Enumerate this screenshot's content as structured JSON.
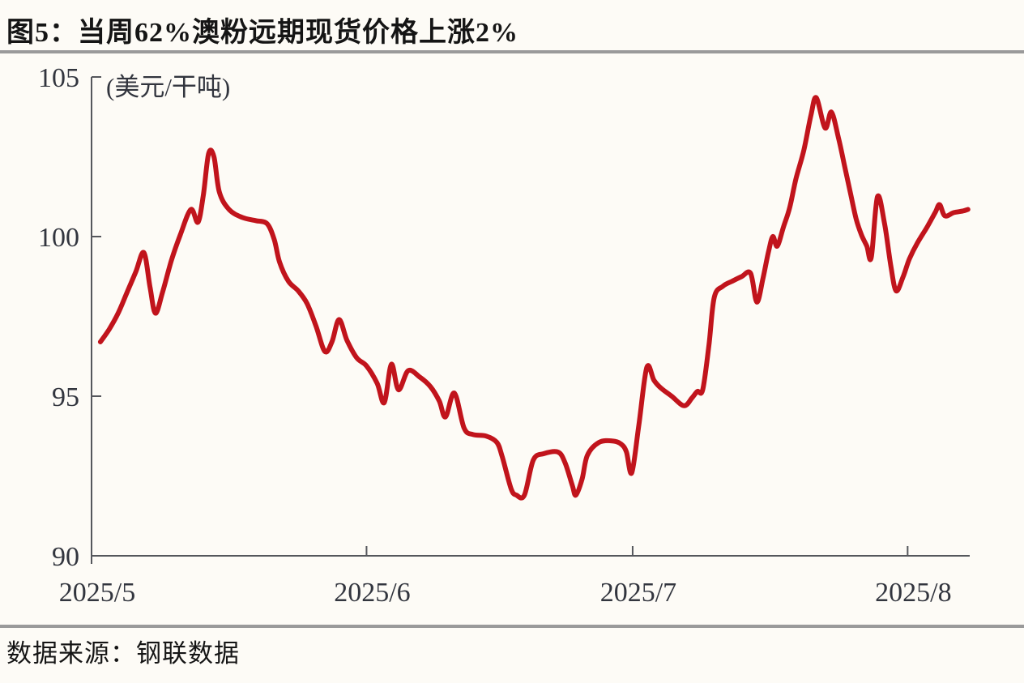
{
  "header": {
    "title": "图5：当周62%澳粉远期现货价格上涨2%"
  },
  "footer": {
    "source": "数据来源：钢联数据"
  },
  "colors": {
    "background": "#fdfbf6",
    "line": "#c1141c",
    "axis": "#55575c",
    "text": "#32353e",
    "title_text": "#151515",
    "divider": "#9a9a9a"
  },
  "chart_data": {
    "type": "line",
    "title": "62%澳粉远期现货价格",
    "unit_label": "(美元/干吨)",
    "ylabel": "美元/干吨",
    "ylim": [
      90,
      105
    ],
    "yticks": [
      105,
      100,
      95,
      90
    ],
    "x_unit": "days since 2025/5/1",
    "x_domain_days": [
      0,
      99
    ],
    "xticks": [
      {
        "label": "2025/5",
        "day": 0
      },
      {
        "label": "2025/6",
        "day": 31
      },
      {
        "label": "2025/7",
        "day": 61
      },
      {
        "label": "2025/8",
        "day": 92
      }
    ],
    "grid": false,
    "legend_position": "none",
    "series": [
      {
        "name": "62%澳粉远期现货价格",
        "color": "#c1141c",
        "points": [
          [
            1,
            96.7
          ],
          [
            2,
            97.1
          ],
          [
            3,
            97.6
          ],
          [
            4,
            98.25
          ],
          [
            5,
            98.9
          ],
          [
            5.9,
            99.5
          ],
          [
            6.6,
            98.4
          ],
          [
            7.2,
            97.6
          ],
          [
            8,
            98.25
          ],
          [
            9,
            99.25
          ],
          [
            10,
            100.05
          ],
          [
            11.2,
            100.85
          ],
          [
            12,
            100.45
          ],
          [
            12.6,
            101.3
          ],
          [
            13.2,
            102.6
          ],
          [
            13.8,
            102.5
          ],
          [
            14.4,
            101.4
          ],
          [
            15.5,
            100.85
          ],
          [
            17,
            100.6
          ],
          [
            18.5,
            100.5
          ],
          [
            19.8,
            100.4
          ],
          [
            20.6,
            99.9
          ],
          [
            21.2,
            99.2
          ],
          [
            22.2,
            98.6
          ],
          [
            23.3,
            98.3
          ],
          [
            24.3,
            97.9
          ],
          [
            25.3,
            97.2
          ],
          [
            26.3,
            96.4
          ],
          [
            27.1,
            96.7
          ],
          [
            27.9,
            97.4
          ],
          [
            28.8,
            96.75
          ],
          [
            29.9,
            96.2
          ],
          [
            31,
            95.95
          ],
          [
            32.2,
            95.4
          ],
          [
            33,
            94.8
          ],
          [
            33.8,
            96
          ],
          [
            34.6,
            95.2
          ],
          [
            35.7,
            95.8
          ],
          [
            37,
            95.6
          ],
          [
            38.2,
            95.3
          ],
          [
            39.2,
            94.85
          ],
          [
            39.9,
            94.35
          ],
          [
            40.9,
            95.1
          ],
          [
            42,
            94
          ],
          [
            43,
            93.8
          ],
          [
            44.5,
            93.75
          ],
          [
            45.7,
            93.55
          ],
          [
            46.3,
            93.1
          ],
          [
            47.3,
            92.1
          ],
          [
            47.9,
            91.9
          ],
          [
            48.8,
            91.9
          ],
          [
            49.8,
            93
          ],
          [
            51,
            93.2
          ],
          [
            52.6,
            93.25
          ],
          [
            53.4,
            92.9
          ],
          [
            54.2,
            92.2
          ],
          [
            54.6,
            91.9
          ],
          [
            55.3,
            92.4
          ],
          [
            55.9,
            93.15
          ],
          [
            57.2,
            93.55
          ],
          [
            58.7,
            93.6
          ],
          [
            59.7,
            93.5
          ],
          [
            60.3,
            93.25
          ],
          [
            60.9,
            92.6
          ],
          [
            61.7,
            94.1
          ],
          [
            62.6,
            95.9
          ],
          [
            63.4,
            95.5
          ],
          [
            64.2,
            95.25
          ],
          [
            65.4,
            95
          ],
          [
            66.8,
            94.7
          ],
          [
            67.7,
            94.95
          ],
          [
            68.3,
            95.15
          ],
          [
            68.9,
            95.2
          ],
          [
            69.6,
            96.6
          ],
          [
            70.2,
            98.1
          ],
          [
            71.2,
            98.45
          ],
          [
            72.2,
            98.6
          ],
          [
            73.3,
            98.75
          ],
          [
            74.3,
            98.85
          ],
          [
            75,
            97.95
          ],
          [
            75.7,
            98.7
          ],
          [
            76.3,
            99.5
          ],
          [
            76.8,
            100
          ],
          [
            77.3,
            99.7
          ],
          [
            78,
            100.3
          ],
          [
            78.7,
            100.9
          ],
          [
            79.4,
            101.8
          ],
          [
            80.3,
            102.7
          ],
          [
            81.1,
            103.8
          ],
          [
            81.7,
            104.35
          ],
          [
            82.7,
            103.4
          ],
          [
            83.4,
            103.9
          ],
          [
            84.2,
            103.1
          ],
          [
            84.9,
            102.2
          ],
          [
            85.6,
            101.3
          ],
          [
            86.2,
            100.55
          ],
          [
            86.8,
            100.05
          ],
          [
            87.4,
            99.7
          ],
          [
            87.9,
            99.35
          ],
          [
            88.6,
            101.25
          ],
          [
            89.4,
            100.4
          ],
          [
            90.1,
            99.1
          ],
          [
            90.7,
            98.3
          ],
          [
            91.5,
            98.75
          ],
          [
            92.2,
            99.3
          ],
          [
            93.1,
            99.8
          ],
          [
            94.2,
            100.3
          ],
          [
            95.1,
            100.75
          ],
          [
            95.6,
            101
          ],
          [
            96.2,
            100.65
          ],
          [
            97.2,
            100.75
          ],
          [
            98.2,
            100.8
          ],
          [
            98.8,
            100.85
          ]
        ]
      }
    ]
  }
}
